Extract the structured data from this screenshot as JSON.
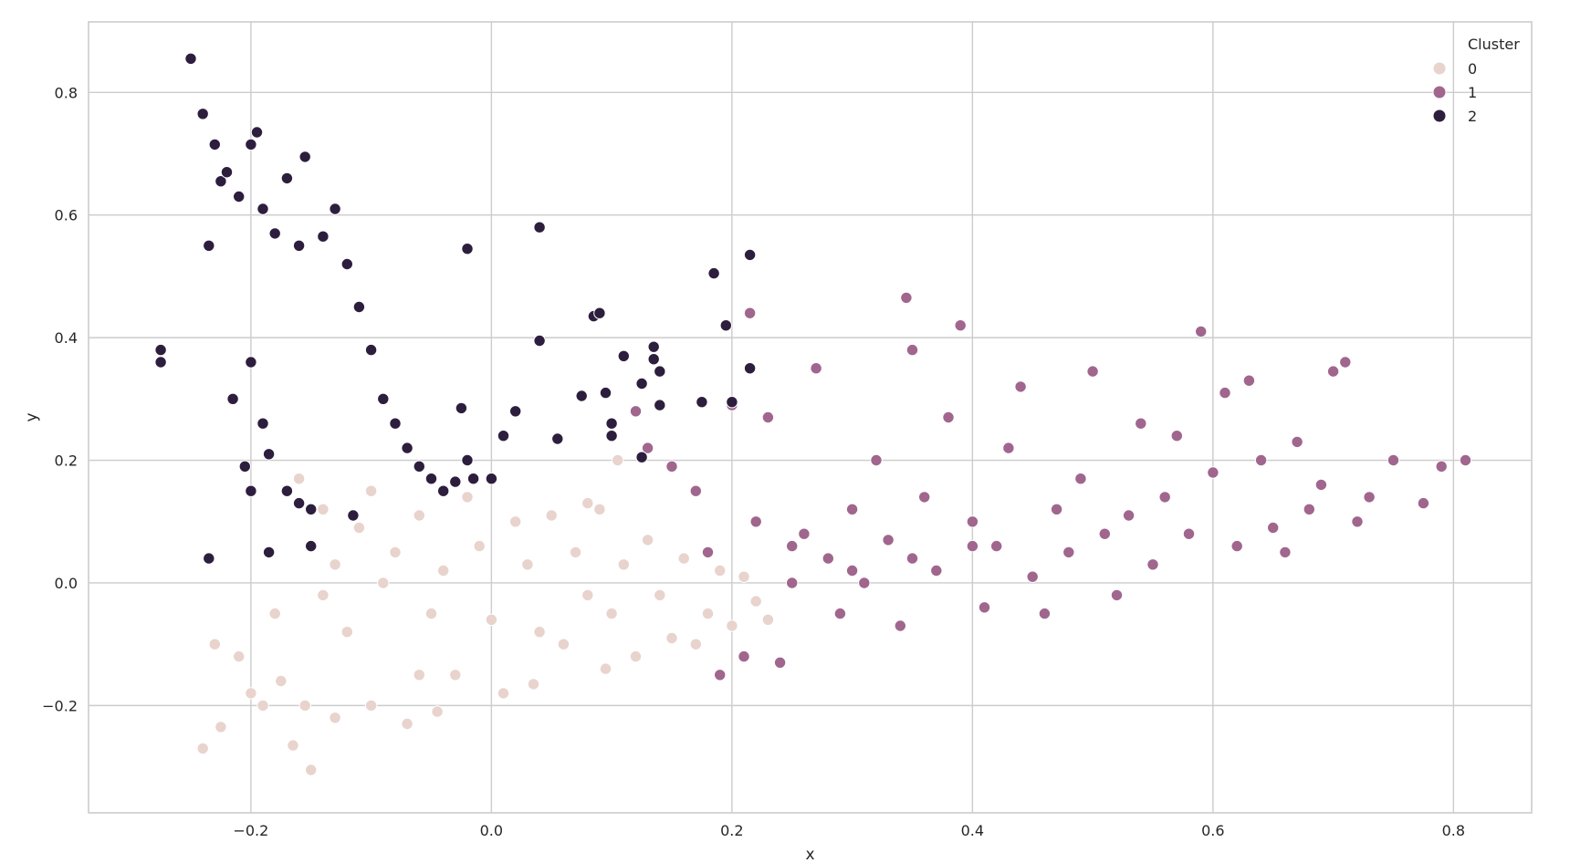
{
  "chart_data": {
    "type": "scatter",
    "title": "",
    "xlabel": "x",
    "ylabel": "y",
    "xlim": [
      -0.335,
      0.865
    ],
    "ylim": [
      -0.375,
      0.915
    ],
    "xticks": [
      -0.2,
      0.0,
      0.2,
      0.4,
      0.6,
      0.8
    ],
    "xtick_labels": [
      "−0.2",
      "0.0",
      "0.2",
      "0.4",
      "0.6",
      "0.8"
    ],
    "yticks": [
      -0.2,
      0.0,
      0.2,
      0.4,
      0.6,
      0.8
    ],
    "ytick_labels": [
      "−0.2",
      "0.0",
      "0.2",
      "0.4",
      "0.6",
      "0.8"
    ],
    "grid": true,
    "legend": {
      "title": "Cluster",
      "placement": "top-right"
    },
    "series": [
      {
        "name": "0",
        "color": "#e8d3cd",
        "points": [
          [
            -0.24,
            -0.27
          ],
          [
            -0.225,
            -0.235
          ],
          [
            -0.23,
            -0.1
          ],
          [
            -0.21,
            -0.12
          ],
          [
            -0.2,
            -0.18
          ],
          [
            -0.19,
            -0.2
          ],
          [
            -0.18,
            -0.05
          ],
          [
            -0.165,
            -0.265
          ],
          [
            -0.15,
            -0.305
          ],
          [
            -0.155,
            -0.2
          ],
          [
            -0.16,
            0.17
          ],
          [
            -0.14,
            0.12
          ],
          [
            -0.13,
            0.03
          ],
          [
            -0.12,
            -0.08
          ],
          [
            -0.11,
            0.09
          ],
          [
            -0.1,
            -0.2
          ],
          [
            -0.1,
            0.15
          ],
          [
            -0.09,
            0.0
          ],
          [
            -0.08,
            0.05
          ],
          [
            -0.07,
            -0.23
          ],
          [
            -0.06,
            0.11
          ],
          [
            -0.05,
            -0.05
          ],
          [
            -0.04,
            0.02
          ],
          [
            -0.03,
            -0.15
          ],
          [
            -0.02,
            0.14
          ],
          [
            -0.01,
            0.06
          ],
          [
            0.0,
            -0.06
          ],
          [
            0.01,
            -0.18
          ],
          [
            0.02,
            0.1
          ],
          [
            0.03,
            0.03
          ],
          [
            0.04,
            -0.08
          ],
          [
            0.05,
            0.11
          ],
          [
            0.06,
            -0.1
          ],
          [
            0.07,
            0.05
          ],
          [
            0.08,
            -0.02
          ],
          [
            0.09,
            0.12
          ],
          [
            0.1,
            -0.05
          ],
          [
            0.11,
            0.03
          ],
          [
            0.12,
            -0.12
          ],
          [
            0.13,
            0.07
          ],
          [
            0.14,
            -0.02
          ],
          [
            0.15,
            -0.09
          ],
          [
            0.16,
            0.04
          ],
          [
            0.17,
            -0.1
          ],
          [
            0.18,
            -0.05
          ],
          [
            0.19,
            0.02
          ],
          [
            0.2,
            -0.07
          ],
          [
            0.21,
            0.01
          ],
          [
            0.22,
            -0.03
          ],
          [
            0.23,
            -0.06
          ],
          [
            0.105,
            0.2
          ],
          [
            0.15,
            0.19
          ],
          [
            0.08,
            0.13
          ],
          [
            -0.13,
            -0.22
          ],
          [
            -0.045,
            -0.21
          ],
          [
            0.035,
            -0.165
          ],
          [
            0.095,
            -0.14
          ],
          [
            -0.175,
            -0.16
          ],
          [
            -0.14,
            -0.02
          ],
          [
            -0.06,
            -0.15
          ]
        ]
      },
      {
        "name": "1",
        "color": "#a0668e",
        "points": [
          [
            0.12,
            0.28
          ],
          [
            0.13,
            0.22
          ],
          [
            0.15,
            0.19
          ],
          [
            0.17,
            0.15
          ],
          [
            0.18,
            0.05
          ],
          [
            0.19,
            -0.15
          ],
          [
            0.2,
            0.29
          ],
          [
            0.21,
            -0.12
          ],
          [
            0.215,
            0.44
          ],
          [
            0.22,
            0.1
          ],
          [
            0.23,
            0.27
          ],
          [
            0.24,
            -0.13
          ],
          [
            0.25,
            0.0
          ],
          [
            0.26,
            0.08
          ],
          [
            0.27,
            0.35
          ],
          [
            0.28,
            0.04
          ],
          [
            0.29,
            -0.05
          ],
          [
            0.3,
            0.12
          ],
          [
            0.31,
            0.0
          ],
          [
            0.32,
            0.2
          ],
          [
            0.33,
            0.07
          ],
          [
            0.34,
            -0.07
          ],
          [
            0.345,
            0.465
          ],
          [
            0.35,
            0.38
          ],
          [
            0.36,
            0.14
          ],
          [
            0.37,
            0.02
          ],
          [
            0.38,
            0.27
          ],
          [
            0.39,
            0.42
          ],
          [
            0.4,
            0.1
          ],
          [
            0.41,
            -0.04
          ],
          [
            0.42,
            0.06
          ],
          [
            0.43,
            0.22
          ],
          [
            0.44,
            0.32
          ],
          [
            0.45,
            0.01
          ],
          [
            0.46,
            -0.05
          ],
          [
            0.47,
            0.12
          ],
          [
            0.48,
            0.05
          ],
          [
            0.49,
            0.17
          ],
          [
            0.5,
            0.345
          ],
          [
            0.51,
            0.08
          ],
          [
            0.52,
            -0.02
          ],
          [
            0.53,
            0.11
          ],
          [
            0.54,
            0.26
          ],
          [
            0.55,
            0.03
          ],
          [
            0.56,
            0.14
          ],
          [
            0.57,
            0.24
          ],
          [
            0.58,
            0.08
          ],
          [
            0.59,
            0.41
          ],
          [
            0.6,
            0.18
          ],
          [
            0.61,
            0.31
          ],
          [
            0.62,
            0.06
          ],
          [
            0.63,
            0.33
          ],
          [
            0.64,
            0.2
          ],
          [
            0.65,
            0.09
          ],
          [
            0.66,
            0.05
          ],
          [
            0.67,
            0.23
          ],
          [
            0.68,
            0.12
          ],
          [
            0.69,
            0.16
          ],
          [
            0.7,
            0.345
          ],
          [
            0.71,
            0.36
          ],
          [
            0.72,
            0.1
          ],
          [
            0.73,
            0.14
          ],
          [
            0.75,
            0.2
          ],
          [
            0.775,
            0.13
          ],
          [
            0.79,
            0.19
          ],
          [
            0.81,
            0.2
          ],
          [
            0.25,
            0.06
          ],
          [
            0.3,
            0.02
          ],
          [
            0.35,
            0.04
          ],
          [
            0.4,
            0.06
          ]
        ]
      },
      {
        "name": "2",
        "color": "#2d1e3e",
        "points": [
          [
            -0.25,
            0.855
          ],
          [
            -0.24,
            0.765
          ],
          [
            -0.23,
            0.715
          ],
          [
            -0.225,
            0.655
          ],
          [
            -0.22,
            0.67
          ],
          [
            -0.2,
            0.715
          ],
          [
            -0.195,
            0.735
          ],
          [
            -0.17,
            0.66
          ],
          [
            -0.155,
            0.695
          ],
          [
            -0.235,
            0.55
          ],
          [
            -0.21,
            0.63
          ],
          [
            -0.19,
            0.61
          ],
          [
            -0.18,
            0.57
          ],
          [
            -0.16,
            0.55
          ],
          [
            -0.14,
            0.565
          ],
          [
            -0.13,
            0.61
          ],
          [
            -0.12,
            0.52
          ],
          [
            -0.11,
            0.45
          ],
          [
            -0.1,
            0.38
          ],
          [
            -0.09,
            0.3
          ],
          [
            -0.08,
            0.26
          ],
          [
            -0.07,
            0.22
          ],
          [
            -0.06,
            0.19
          ],
          [
            -0.05,
            0.17
          ],
          [
            -0.04,
            0.15
          ],
          [
            -0.275,
            0.38
          ],
          [
            -0.275,
            0.36
          ],
          [
            -0.215,
            0.3
          ],
          [
            -0.2,
            0.36
          ],
          [
            -0.19,
            0.26
          ],
          [
            -0.185,
            0.21
          ],
          [
            -0.17,
            0.15
          ],
          [
            -0.16,
            0.13
          ],
          [
            -0.15,
            0.12
          ],
          [
            -0.2,
            0.15
          ],
          [
            -0.205,
            0.19
          ],
          [
            -0.235,
            0.04
          ],
          [
            -0.185,
            0.05
          ],
          [
            -0.15,
            0.06
          ],
          [
            -0.115,
            0.11
          ],
          [
            -0.02,
            0.545
          ],
          [
            -0.025,
            0.285
          ],
          [
            -0.02,
            0.2
          ],
          [
            -0.015,
            0.17
          ],
          [
            0.0,
            0.17
          ],
          [
            0.01,
            0.24
          ],
          [
            0.02,
            0.28
          ],
          [
            0.04,
            0.58
          ],
          [
            0.04,
            0.395
          ],
          [
            0.055,
            0.235
          ],
          [
            0.075,
            0.305
          ],
          [
            0.085,
            0.435
          ],
          [
            0.09,
            0.44
          ],
          [
            0.095,
            0.31
          ],
          [
            0.1,
            0.26
          ],
          [
            0.1,
            0.24
          ],
          [
            0.11,
            0.37
          ],
          [
            0.125,
            0.325
          ],
          [
            0.135,
            0.385
          ],
          [
            0.135,
            0.365
          ],
          [
            0.14,
            0.345
          ],
          [
            0.14,
            0.29
          ],
          [
            0.175,
            0.295
          ],
          [
            0.185,
            0.505
          ],
          [
            0.195,
            0.42
          ],
          [
            0.2,
            0.295
          ],
          [
            0.215,
            0.535
          ],
          [
            0.215,
            0.35
          ],
          [
            0.125,
            0.205
          ],
          [
            -0.03,
            0.165
          ]
        ]
      }
    ]
  }
}
